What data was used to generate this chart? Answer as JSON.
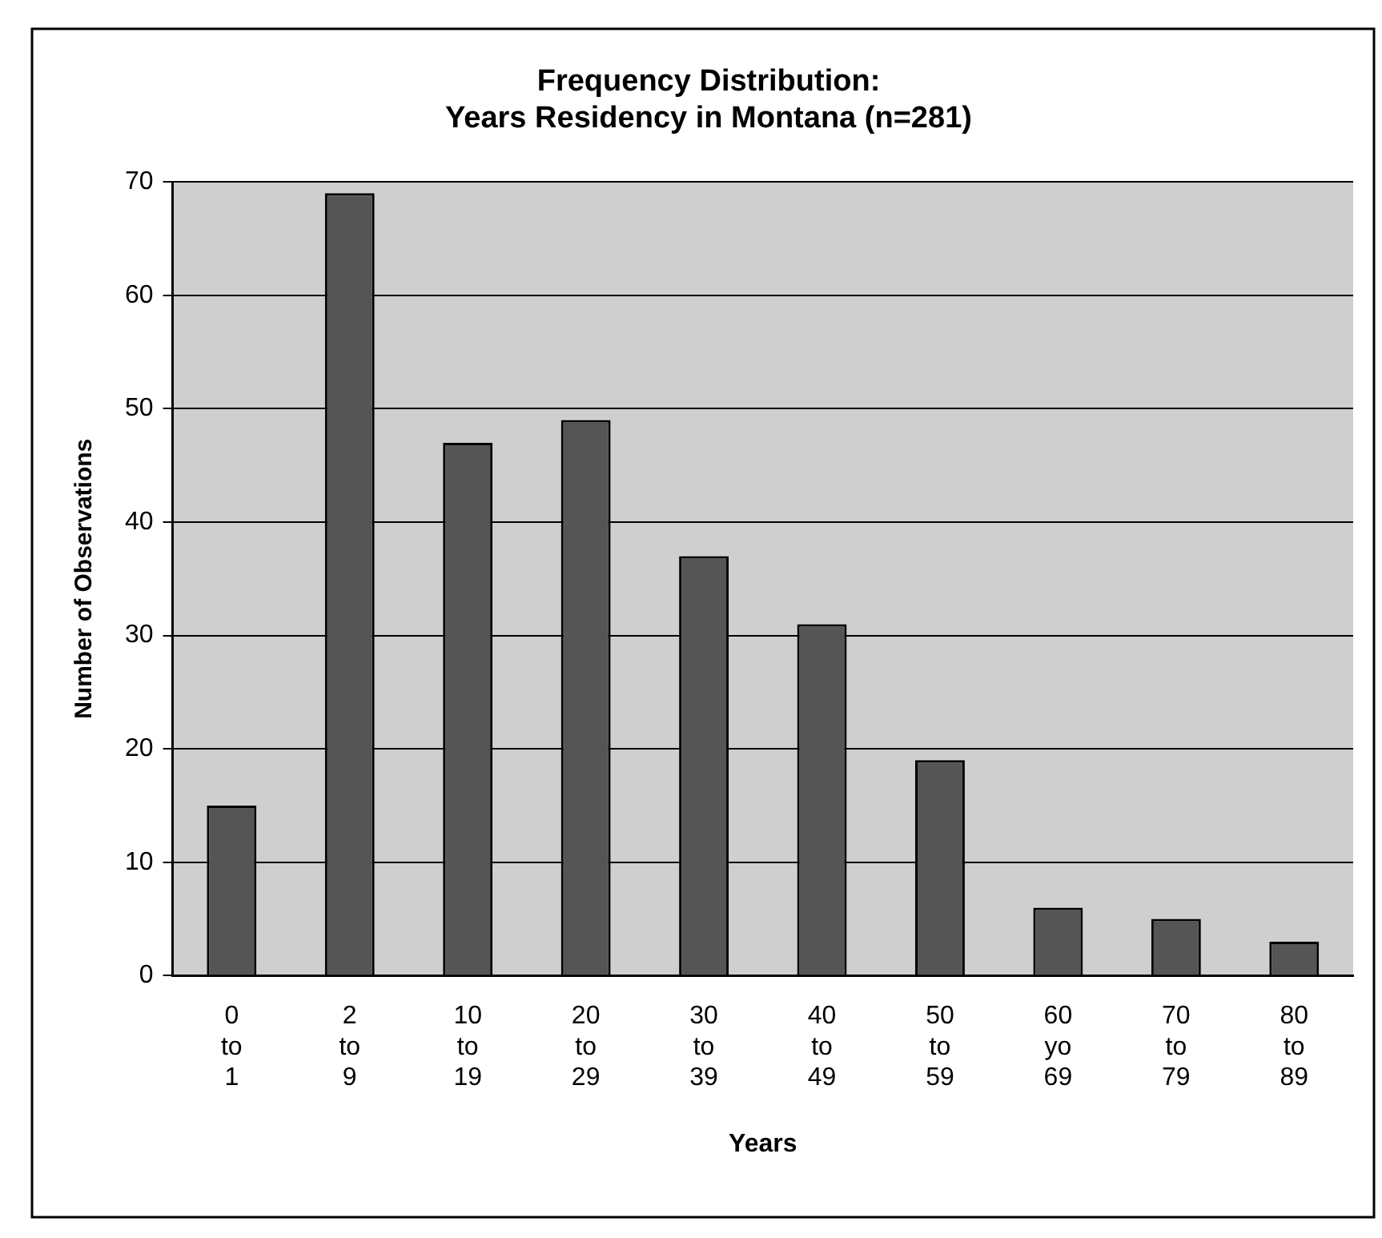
{
  "chart_data": {
    "type": "bar",
    "title": "Frequency Distribution:\nYears Residency in Montana (n=281)",
    "xlabel": "Years",
    "ylabel": "Number of Observations",
    "categories": [
      "0 to 1",
      "2 to 9",
      "10 to 19",
      "20 to 29",
      "30 to 39",
      "40 to 49",
      "50 to 59",
      "60 yo 69",
      "70 to 79",
      "80 to 89"
    ],
    "values": [
      15,
      69,
      47,
      49,
      37,
      31,
      19,
      6,
      5,
      3
    ],
    "color": "#555555",
    "ylim": [
      0,
      70
    ],
    "yticks": [
      0,
      10,
      20,
      30,
      40,
      50,
      60,
      70
    ],
    "grid": "y",
    "legend": false
  }
}
